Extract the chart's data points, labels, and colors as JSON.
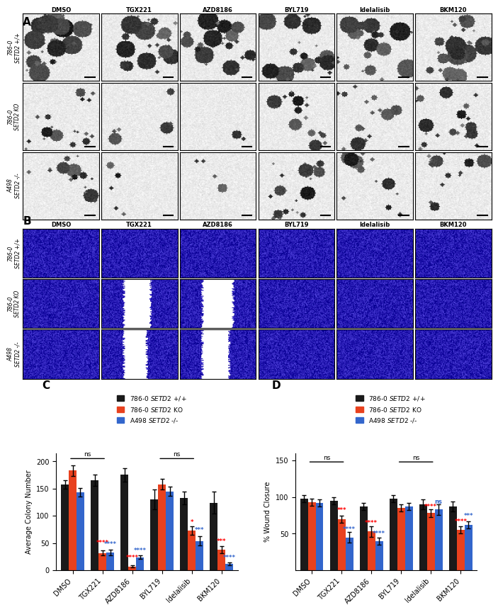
{
  "panel_labels": [
    "A",
    "B",
    "C",
    "D"
  ],
  "col_labels": [
    "DMSO",
    "TGX221",
    "AZD8186",
    "BYL719",
    "Idelalisib",
    "BKM120"
  ],
  "row_labels_A": [
    "786-0\nSETD2 +/+",
    "786-0\nSETD2 KO",
    "A498\nSETD2 -/-"
  ],
  "row_labels_B": [
    "786-0\nSETD2 +/+",
    "786-0\nSETD2 KO",
    "A498\nSETD2 -/-"
  ],
  "bar_colors": [
    "#1a1a1a",
    "#e8411e",
    "#3366cc"
  ],
  "C_values": {
    "black": [
      157,
      165,
      175,
      130,
      133,
      124
    ],
    "red": [
      183,
      32,
      7,
      158,
      73,
      38
    ],
    "blue": [
      143,
      33,
      24,
      145,
      54,
      12
    ]
  },
  "C_errors": {
    "black": [
      8,
      10,
      12,
      18,
      12,
      20
    ],
    "red": [
      10,
      5,
      2,
      10,
      8,
      6
    ],
    "blue": [
      8,
      5,
      3,
      8,
      8,
      3
    ]
  },
  "D_values": {
    "black": [
      98,
      95,
      87,
      98,
      90,
      87
    ],
    "red": [
      93,
      70,
      53,
      85,
      78,
      55
    ],
    "blue": [
      92,
      45,
      40,
      87,
      83,
      62
    ]
  },
  "D_errors": {
    "black": [
      5,
      5,
      5,
      5,
      7,
      7
    ],
    "red": [
      5,
      5,
      7,
      5,
      5,
      5
    ],
    "blue": [
      5,
      7,
      5,
      5,
      7,
      5
    ]
  },
  "C_ylabel": "Average Colony Number",
  "D_ylabel": "% Wound Closure",
  "C_ylim": [
    0,
    215
  ],
  "D_ylim": [
    0,
    160
  ],
  "C_yticks": [
    0,
    50,
    100,
    150,
    200
  ],
  "D_yticks": [
    50,
    100,
    150
  ],
  "xticklabels": [
    "DMSO",
    "TGX221",
    "AZD8186",
    "BYL719",
    "Idelalisib",
    "BKM120"
  ],
  "sig_red_C": [
    "",
    "****",
    "****",
    "",
    "*",
    "***"
  ],
  "sig_blue_C": [
    "",
    "****",
    "****",
    "",
    "***",
    "****"
  ],
  "sig_red_D": [
    "",
    "***",
    "****",
    "",
    "****",
    "****"
  ],
  "sig_blue_D": [
    "",
    "****",
    "****",
    "",
    "ns",
    "***"
  ],
  "background_color": "#ffffff"
}
